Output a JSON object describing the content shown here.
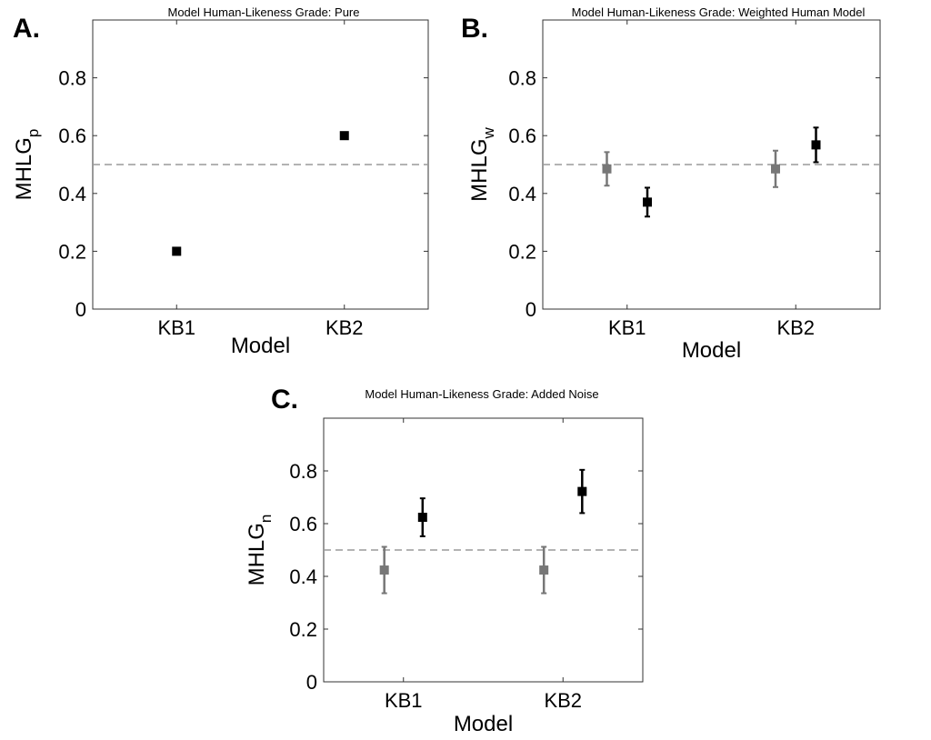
{
  "chart_data": [
    {
      "panel": "A.",
      "type": "scatter",
      "title": "Model Human-Likeness Grade: Pure",
      "xlabel": "Model",
      "ylabel": "MHLG",
      "ylabel_sub": "p",
      "categories": [
        "KB1",
        "KB2"
      ],
      "ylim": [
        0,
        1
      ],
      "yticks": [
        0,
        0.2,
        0.4,
        0.6,
        0.8
      ],
      "ytick_labels": [
        "0",
        "0.2",
        "0.4",
        "0.6",
        "0.8"
      ],
      "reference_line": 0.5,
      "grid": false,
      "series": [
        {
          "color": "#000000",
          "offset": 0,
          "values": [
            0.2,
            0.6
          ],
          "errors": [
            0,
            0
          ]
        }
      ]
    },
    {
      "panel": "B.",
      "type": "scatter",
      "title": "Model Human-Likeness Grade: Weighted Human Model",
      "xlabel": "Model",
      "ylabel": "MHLG",
      "ylabel_sub": "w",
      "categories": [
        "KB1",
        "KB2"
      ],
      "ylim": [
        0,
        1
      ],
      "yticks": [
        0,
        0.2,
        0.4,
        0.6,
        0.8
      ],
      "ytick_labels": [
        "0",
        "0.2",
        "0.4",
        "0.6",
        "0.8"
      ],
      "reference_line": 0.5,
      "grid": false,
      "series": [
        {
          "color": "#777777",
          "offset": -0.12,
          "values": [
            0.485,
            0.485
          ],
          "errors": [
            0.058,
            0.063
          ]
        },
        {
          "color": "#000000",
          "offset": 0.12,
          "values": [
            0.37,
            0.568
          ],
          "errors": [
            0.05,
            0.06
          ]
        }
      ]
    },
    {
      "panel": "C.",
      "type": "scatter",
      "title": "Model Human-Likeness Grade: Added Noise",
      "xlabel": "Model",
      "ylabel": "MHLG",
      "ylabel_sub": "n",
      "categories": [
        "KB1",
        "KB2"
      ],
      "ylim": [
        0,
        1
      ],
      "yticks": [
        0,
        0.2,
        0.4,
        0.6,
        0.8
      ],
      "ytick_labels": [
        "0",
        "0.2",
        "0.4",
        "0.6",
        "0.8"
      ],
      "reference_line": 0.5,
      "grid": false,
      "series": [
        {
          "color": "#777777",
          "offset": -0.12,
          "values": [
            0.424,
            0.424
          ],
          "errors": [
            0.088,
            0.088
          ]
        },
        {
          "color": "#000000",
          "offset": 0.12,
          "values": [
            0.624,
            0.722
          ],
          "errors": [
            0.072,
            0.082
          ]
        }
      ]
    }
  ]
}
